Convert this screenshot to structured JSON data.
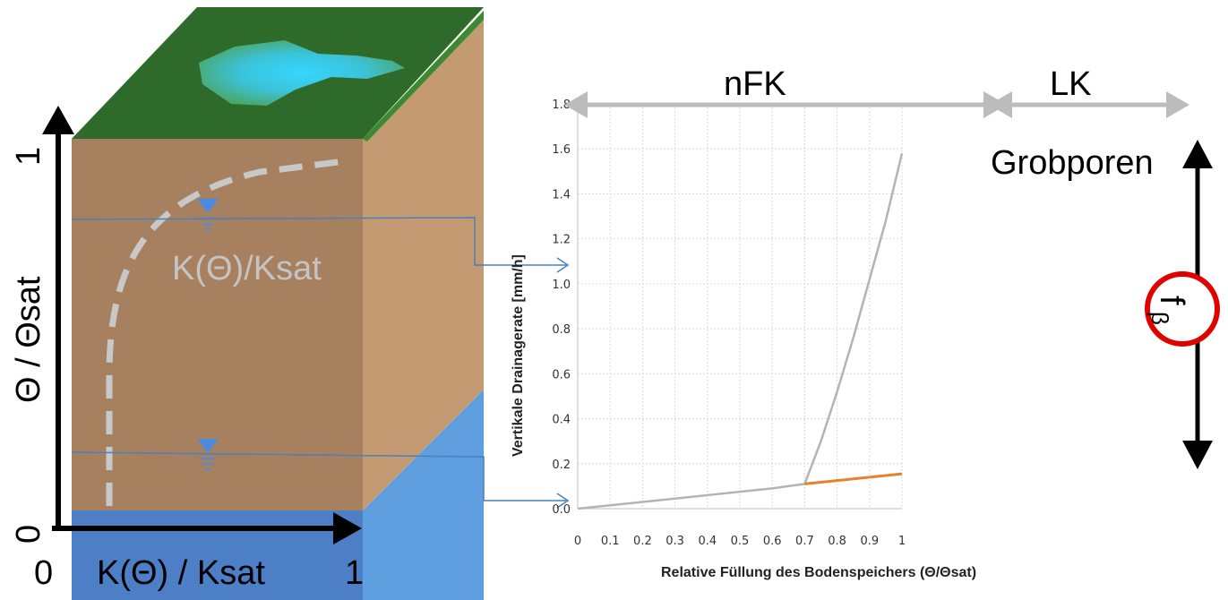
{
  "block": {
    "y_axis_label": "Θ / Θsat",
    "y_axis_top": "1",
    "y_axis_bottom": "0",
    "x_axis_label": "K(Θ) / Ksat",
    "x_axis_left": "0",
    "x_axis_right": "1",
    "curve_label": "K(Θ)/Ksat"
  },
  "zones": {
    "nfk": "nFK",
    "lk": "LK",
    "grobporen": "Grobporen",
    "f_beta": "f",
    "f_beta_sub": "β"
  },
  "colors": {
    "grass": "#2e6a2a",
    "soil": "#a9805d",
    "water": "#5b95d6",
    "curve_gray": "#b4b4b4",
    "curve_orange": "#e8822a",
    "highlight_circle": "#e00000",
    "connector": "#4a7fc0"
  },
  "chart_data": {
    "type": "line",
    "xlabel": "Relative Füllung des Bodenspeichers   (Θ/Θsat)",
    "ylabel": "Vertikale Drainagerate  [mm/h]",
    "xlim": [
      0,
      1
    ],
    "ylim": [
      0,
      1.8
    ],
    "x_ticks": [
      "0",
      "0.1",
      "0.2",
      "0.3",
      "0.4",
      "0.5",
      "0.6",
      "0.7",
      "0.8",
      "0.9",
      "1"
    ],
    "y_ticks": [
      "0.0",
      "0.2",
      "0.4",
      "0.6",
      "0.8",
      "1.0",
      "1.2",
      "1.4",
      "1.6",
      "1.8"
    ],
    "grid": true,
    "series": [
      {
        "color": "#b4b4b4",
        "x": [
          0,
          0.1,
          0.2,
          0.3,
          0.4,
          0.5,
          0.6,
          0.7
        ],
        "y": [
          0,
          0.015,
          0.03,
          0.045,
          0.06,
          0.075,
          0.09,
          0.11
        ]
      },
      {
        "color": "#b4b4b4",
        "x": [
          0.7,
          0.75,
          0.8,
          0.85,
          0.9,
          0.95,
          1.0
        ],
        "y": [
          0.11,
          0.3,
          0.52,
          0.76,
          1.02,
          1.28,
          1.58
        ]
      },
      {
        "color": "#e8822a",
        "x": [
          0.7,
          0.8,
          0.9,
          1.0
        ],
        "y": [
          0.11,
          0.125,
          0.14,
          0.155
        ]
      }
    ]
  }
}
